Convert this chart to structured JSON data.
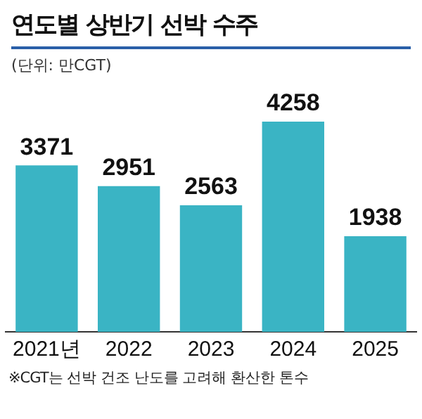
{
  "chart_data": {
    "type": "bar",
    "title": "연도별 상반기 선박 수주",
    "subtitle": "(단위: 만CGT)",
    "categories": [
      "2021년",
      "2022",
      "2023",
      "2024",
      "2025"
    ],
    "values": [
      3371,
      2951,
      2563,
      4258,
      1938
    ],
    "color": "#3ab4c4",
    "data_labels": true,
    "grid": false,
    "legend": false,
    "annotations": [
      "※CGT는 선박 건조 난도를 고려해 환산한 톤수"
    ]
  }
}
